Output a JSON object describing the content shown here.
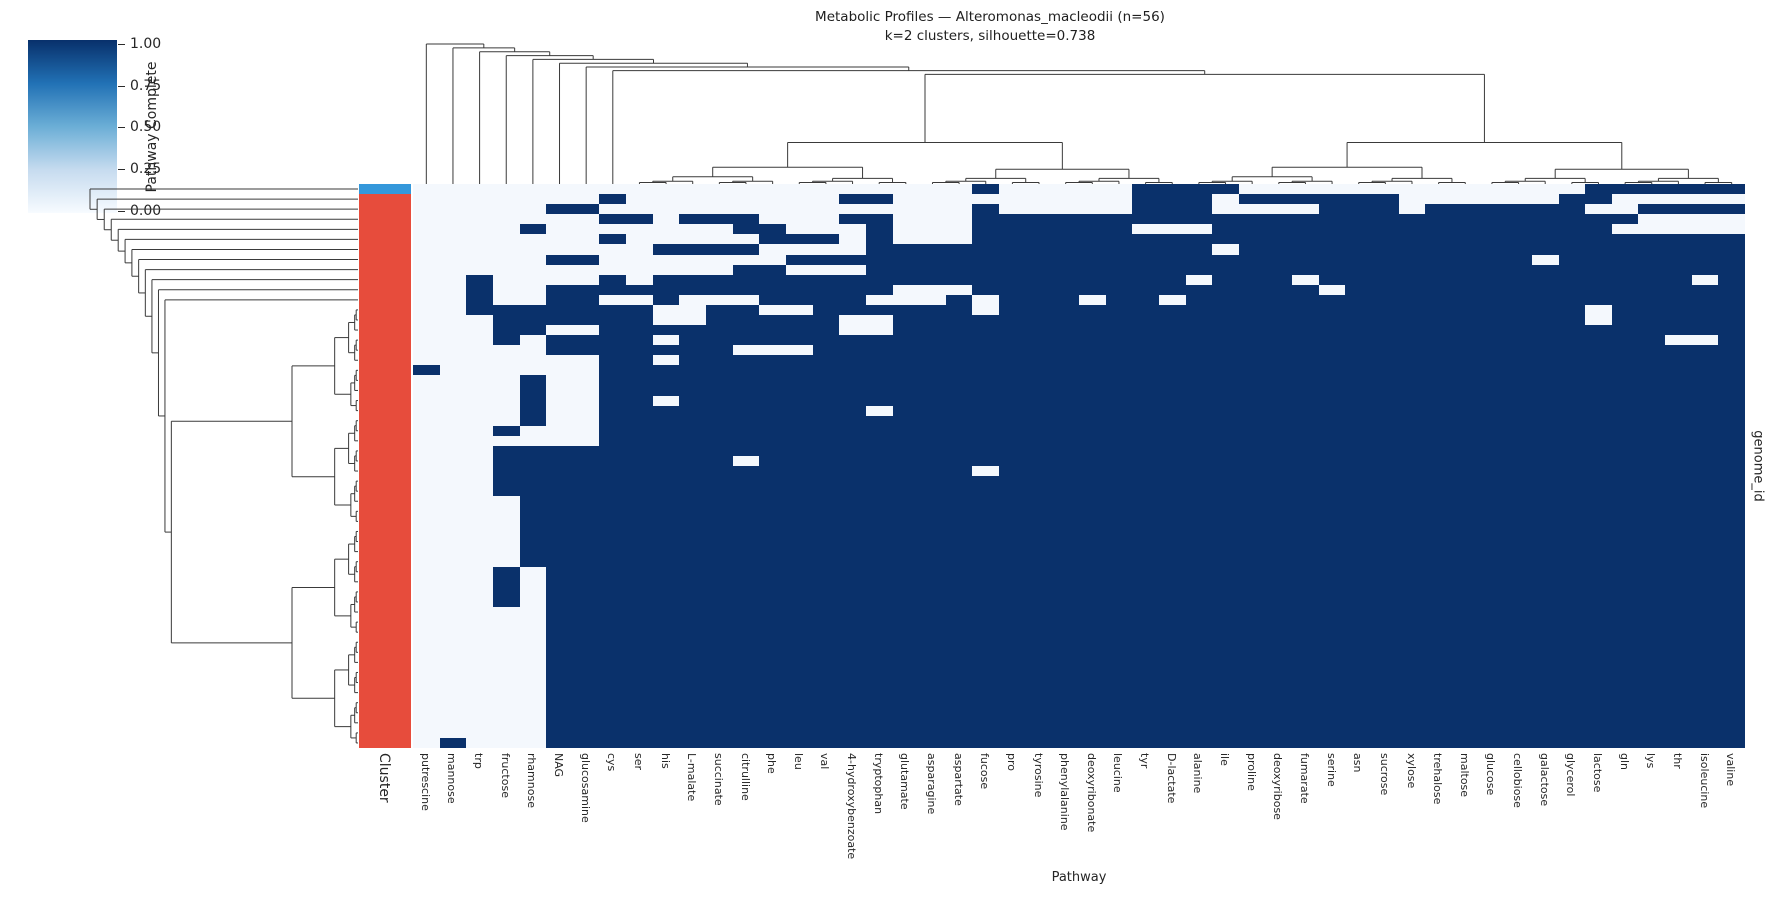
{
  "title": {
    "line1": "Metabolic Profiles — Alteromonas_macleodii (n=56)",
    "line2": "k=2 clusters, silhouette=0.738"
  },
  "colorbar": {
    "label": "Pathway Complete",
    "ticks": [
      "1.00",
      "0.75",
      "0.50",
      "0.25",
      "0.00"
    ]
  },
  "axes": {
    "x_label": "Pathway",
    "y_label": "genome_id",
    "cluster_column_label": "Cluster"
  },
  "chart_data": {
    "type": "heatmap",
    "subtype": "clustermap-with-dendrograms",
    "n_rows": 56,
    "n_cols": 50,
    "value_scale": {
      "min": 0.0,
      "max": 1.0,
      "cell_values_shown": "binary 0 or 1"
    },
    "columns": [
      "putrescine",
      "mannose",
      "trp",
      "fructose",
      "rhamnose",
      "NAG",
      "glucosamine",
      "cys",
      "ser",
      "his",
      "L-malate",
      "succinate",
      "citrulline",
      "phe",
      "leu",
      "val",
      "4-hydroxybenzoate",
      "tryptophan",
      "glutamate",
      "asparagine",
      "aspartate",
      "fucose",
      "pro",
      "tyrosine",
      "phenylalanine",
      "deoxyribonate",
      "leucine",
      "tyr",
      "D-lactate",
      "alanine",
      "ile",
      "proline",
      "deoxyribose",
      "fumarate",
      "serine",
      "asn",
      "sucrose",
      "xylose",
      "trehalose",
      "maltose",
      "glucose",
      "cellobiose",
      "galactose",
      "glycerol",
      "lactose",
      "gln",
      "lys",
      "thr",
      "isoleucine",
      "valine"
    ],
    "colors": {
      "complete": "#0a316b",
      "incomplete": "#f4f8fd",
      "cluster_blue": "#3498db",
      "cluster_red": "#e74c3c"
    },
    "cluster_bar": {
      "blue_rows": 1,
      "red_rows": 55
    },
    "matrix": [
      "00000000000000000000010000011110000000000000111111",
      "00000001000000001100000000011101111110000001100000",
      "00000110000000000000010000011100001110111111001111",
      "00000001101110001100011111111111111111111111110000",
      "00001000000011000100011111100011111111111111100000",
      "00000001000001110100011111111111111111111111111111",
      "00000000011110000111111111111101111111111111111111",
      "00000110000000111111111111111111111111111101111111",
      "00000000000011000111111111111111111111111111111111",
      "00100001011111111111111111111011101111111111111101",
      "00100111111111111100011111111111110111111111111111",
      "00100110010001111000101110110111111111111111111111",
      "00111111100110011111101111111111111111111111011111",
      "00011111100111110011111111111111111111111111011111",
      "00011001111111110011111111111111111111111111111111",
      "00010111101111111111111111111111111111111111111001",
      "00000111111100011111111111111111111111111111111111",
      "00000001101111111111111111111111111111111111111111",
      "10000001111111111111111111111111111111111111111111",
      "00001001111111111111111111111111111111111111111111",
      "00001001111111111111111111111111111111111111111111",
      "00001001101111111111111111111111111111111111111111",
      "00001001111111111011111111111111111111111111111111",
      "00001001111111111111111111111111111111111111111111",
      "00010001111111111111111111111111111111111111111111",
      "00000001111111111111111111111111111111111111111111",
      "00011111111111111111111111111111111111111111111111",
      "00011111111101111111111111111111111111111111111111",
      "00011111111111111111101111111111111111111111111111",
      "00011111111111111111111111111111111111111111111111",
      "00011111111111111111111111111111111111111111111111",
      "00001111111111111111111111111111111111111111111111",
      "00001111111111111111111111111111111111111111111111",
      "00001111111111111111111111111111111111111111111111",
      "00001111111111111111111111111111111111111111111111",
      "00001111111111111111111111111111111111111111111111",
      "00001111111111111111111111111111111111111111111111",
      "00001111111111111111111111111111111111111111111111",
      "00010111111111111111111111111111111111111111111111",
      "00010111111111111111111111111111111111111111111111",
      "00010111111111111111111111111111111111111111111111",
      "00010111111111111111111111111111111111111111111111",
      "00000111111111111111111111111111111111111111111111",
      "00000111111111111111111111111111111111111111111111",
      "00000111111111111111111111111111111111111111111111",
      "00000111111111111111111111111111111111111111111111",
      "00000111111111111111111111111111111111111111111111",
      "00000111111111111111111111111111111111111111111111",
      "00000111111111111111111111111111111111111111111111",
      "00000111111111111111111111111111111111111111111111",
      "00000111111111111111111111111111111111111111111111",
      "00000111111111111111111111111111111111111111111111",
      "00000111111111111111111111111111111111111111111111",
      "00000111111111111111111111111111111111111111111111",
      "00000111111111111111111111111111111111111111111111",
      "01000111111111111111111111111111111111111111111111"
    ]
  }
}
